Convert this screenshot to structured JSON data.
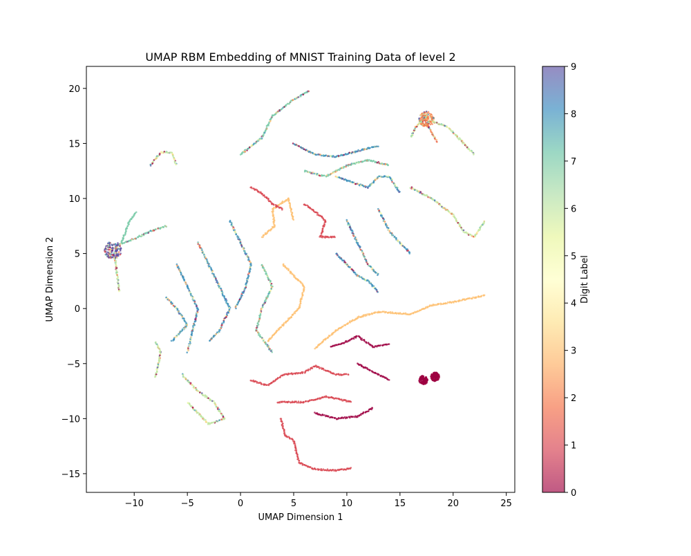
{
  "chart_data": {
    "type": "scatter",
    "title": "UMAP RBM Embedding of MNIST Training Data of level 2",
    "xlabel": "UMAP Dimension 1",
    "ylabel": "UMAP Dimension 2",
    "xlim": [
      -14.5,
      25.8
    ],
    "ylim": [
      -16.7,
      22.0
    ],
    "x_ticks": [
      -10,
      -5,
      0,
      5,
      10,
      15,
      20,
      25
    ],
    "y_ticks": [
      -15,
      -10,
      -5,
      0,
      5,
      10,
      15,
      20
    ],
    "x_tick_labels": [
      "−10",
      "−5",
      "0",
      "5",
      "10",
      "15",
      "20",
      "25"
    ],
    "y_tick_labels": [
      "−15",
      "−10",
      "−5",
      "0",
      "5",
      "10",
      "15",
      "20"
    ],
    "grid": false,
    "colormap": "Spectral",
    "colorbar": {
      "label": "Digit Label",
      "range": [
        0,
        9
      ],
      "ticks": [
        "0",
        "1",
        "2",
        "3",
        "4",
        "5",
        "6",
        "7",
        "8",
        "9"
      ],
      "colors": [
        "#9e0142",
        "#d53e4f",
        "#f46d43",
        "#fdae61",
        "#fee08b",
        "#ffffbf",
        "#e6f598",
        "#abdda4",
        "#66c2a5",
        "#3288bd",
        "#5e4fa2"
      ]
    },
    "clusters": [
      {
        "label": 9,
        "mix": true,
        "points": [
          [
            -12,
            5.3
          ]
        ],
        "blob": 0.8,
        "note": "dense knot"
      },
      {
        "label": 2,
        "mix": true,
        "points": [
          [
            17.5,
            17.2
          ]
        ],
        "blob": 0.7
      },
      {
        "label": 0,
        "points": [
          [
            18.3,
            -6.2
          ],
          [
            17.2,
            -6.5
          ]
        ],
        "blob": 0.4
      },
      {
        "label": 1,
        "points": [
          [
            3.8,
            -10
          ],
          [
            4.2,
            -11.5
          ],
          [
            5,
            -12
          ],
          [
            5.5,
            -14
          ],
          [
            7,
            -14.6
          ],
          [
            9,
            -14.7
          ],
          [
            10.5,
            -14.5
          ]
        ]
      },
      {
        "label": 1,
        "points": [
          [
            1,
            -6.5
          ],
          [
            2.5,
            -7
          ],
          [
            4,
            -6
          ],
          [
            6,
            -5.8
          ],
          [
            7,
            -5.2
          ],
          [
            8,
            -5.6
          ],
          [
            9,
            -6
          ],
          [
            10.2,
            -6
          ]
        ]
      },
      {
        "label": 1,
        "points": [
          [
            3.5,
            -8.5
          ],
          [
            6,
            -8.5
          ],
          [
            8,
            -8
          ],
          [
            10.5,
            -8.5
          ]
        ]
      },
      {
        "label": 0,
        "points": [
          [
            7,
            -9.5
          ],
          [
            9,
            -10
          ],
          [
            11,
            -9.8
          ],
          [
            12.5,
            -9
          ]
        ]
      },
      {
        "label": 0,
        "points": [
          [
            8.5,
            -3.5
          ],
          [
            10,
            -3
          ],
          [
            11,
            -2.5
          ],
          [
            12.5,
            -3.5
          ],
          [
            14,
            -3.2
          ]
        ]
      },
      {
        "label": 0,
        "points": [
          [
            11,
            -5
          ],
          [
            12,
            -5.5
          ],
          [
            13,
            -6
          ],
          [
            14,
            -6.5
          ]
        ]
      },
      {
        "label": 3,
        "points": [
          [
            7,
            -3.6
          ],
          [
            9,
            -2
          ],
          [
            11,
            -0.8
          ],
          [
            13,
            -0.3
          ],
          [
            16,
            -0.5
          ],
          [
            18,
            0.3
          ],
          [
            20,
            0.6
          ],
          [
            23,
            1.2
          ]
        ]
      },
      {
        "label": 3,
        "points": [
          [
            4,
            4
          ],
          [
            5,
            3
          ],
          [
            6,
            2
          ],
          [
            5.5,
            0
          ],
          [
            4.5,
            -1
          ],
          [
            3.5,
            -2
          ],
          [
            2.5,
            -3
          ]
        ]
      },
      {
        "label": 3,
        "points": [
          [
            2,
            6.5
          ],
          [
            3.2,
            7.5
          ],
          [
            3,
            9
          ],
          [
            4.5,
            10
          ],
          [
            5,
            8
          ]
        ]
      },
      {
        "label": 1,
        "points": [
          [
            1,
            11
          ],
          [
            2,
            10.5
          ],
          [
            3,
            9.5
          ],
          [
            4,
            9
          ]
        ]
      },
      {
        "label": 1,
        "points": [
          [
            6,
            9.5
          ],
          [
            7,
            8.8
          ],
          [
            8,
            8
          ],
          [
            7.5,
            6.5
          ],
          [
            9,
            6.5
          ]
        ]
      },
      {
        "label": 7,
        "mix": true,
        "points": [
          [
            -7,
            7.5
          ],
          [
            -8.5,
            7
          ],
          [
            -10.3,
            6.2
          ],
          [
            -11.5,
            5.8
          ]
        ]
      },
      {
        "label": 7,
        "points": [
          [
            -11.2,
            6
          ],
          [
            -10.5,
            7.8
          ],
          [
            -9.8,
            8.8
          ]
        ]
      },
      {
        "label": 6,
        "mix": true,
        "points": [
          [
            -11.8,
            4.5
          ],
          [
            -11.6,
            3
          ],
          [
            -11.4,
            1.5
          ]
        ]
      },
      {
        "label": 6,
        "mix": true,
        "points": [
          [
            -8.5,
            13
          ],
          [
            -7.5,
            14.2
          ],
          [
            -6.5,
            14.2
          ],
          [
            -6,
            13
          ]
        ]
      },
      {
        "label": 6,
        "mix": true,
        "points": [
          [
            17.5,
            17.5
          ],
          [
            16.5,
            16.5
          ],
          [
            16,
            15.5
          ]
        ]
      },
      {
        "label": 6,
        "mix": true,
        "points": [
          [
            18,
            17
          ],
          [
            19.5,
            16.5
          ],
          [
            21,
            15
          ],
          [
            22,
            14
          ]
        ]
      },
      {
        "label": 2,
        "mix": true,
        "points": [
          [
            17.5,
            16.8
          ],
          [
            18,
            16
          ],
          [
            18.5,
            15.1
          ]
        ]
      },
      {
        "label": 6,
        "mix": true,
        "points": [
          [
            16,
            11
          ],
          [
            18,
            10
          ],
          [
            20,
            8.5
          ],
          [
            21,
            7
          ],
          [
            22,
            6.5
          ],
          [
            23,
            8
          ]
        ]
      },
      {
        "label": 6,
        "mix": true,
        "points": [
          [
            -8,
            -6.2
          ],
          [
            -7.5,
            -4
          ],
          [
            -8,
            -3
          ]
        ]
      },
      {
        "label": 6,
        "mix": true,
        "points": [
          [
            -5.5,
            -6
          ],
          [
            -4,
            -7.5
          ],
          [
            -2.5,
            -8.5
          ],
          [
            -1.5,
            -10
          ],
          [
            -3,
            -10.5
          ],
          [
            -5,
            -8.5
          ]
        ]
      },
      {
        "label": 7,
        "mix": true,
        "points": [
          [
            0,
            14
          ],
          [
            2,
            15.5
          ],
          [
            3,
            17.5
          ],
          [
            5,
            19
          ],
          [
            6.5,
            19.8
          ]
        ]
      },
      {
        "label": 8,
        "mix": true,
        "points": [
          [
            5,
            15
          ],
          [
            7,
            14
          ],
          [
            9,
            13.8
          ],
          [
            11,
            14.3
          ],
          [
            13,
            14.8
          ]
        ]
      },
      {
        "label": 8,
        "mix": true,
        "points": [
          [
            9,
            12
          ],
          [
            11,
            11.3
          ],
          [
            12,
            11
          ],
          [
            13,
            12
          ],
          [
            14,
            12
          ],
          [
            15,
            10.5
          ]
        ]
      },
      {
        "label": 8,
        "mix": true,
        "points": [
          [
            -4,
            6
          ],
          [
            -3,
            4
          ],
          [
            -2,
            2
          ],
          [
            -1,
            0
          ],
          [
            -2,
            -2
          ],
          [
            -3,
            -3
          ]
        ]
      },
      {
        "label": 8,
        "mix": true,
        "points": [
          [
            -6,
            4
          ],
          [
            -5,
            2
          ],
          [
            -4,
            0
          ],
          [
            -4.5,
            -2
          ],
          [
            -5,
            -4
          ]
        ]
      },
      {
        "label": 8,
        "mix": true,
        "points": [
          [
            -1,
            8
          ],
          [
            0,
            6
          ],
          [
            1,
            4
          ],
          [
            0.5,
            2
          ],
          [
            -0.5,
            0
          ]
        ]
      },
      {
        "label": 8,
        "mix": true,
        "points": [
          [
            9,
            5
          ],
          [
            10,
            4
          ],
          [
            11,
            3
          ],
          [
            12,
            2.5
          ],
          [
            13,
            1.5
          ]
        ]
      },
      {
        "label": 8,
        "mix": true,
        "points": [
          [
            10,
            8
          ],
          [
            11,
            6
          ],
          [
            12,
            4
          ],
          [
            13,
            3
          ]
        ]
      },
      {
        "label": 8,
        "mix": true,
        "points": [
          [
            13,
            9
          ],
          [
            14,
            7
          ],
          [
            15,
            6
          ],
          [
            16,
            5
          ]
        ]
      },
      {
        "label": 8,
        "mix": true,
        "points": [
          [
            -7,
            1
          ],
          [
            -6,
            0
          ],
          [
            -5,
            -1.5
          ],
          [
            -6.5,
            -3
          ]
        ]
      },
      {
        "label": 7,
        "mix": true,
        "points": [
          [
            2,
            4
          ],
          [
            3,
            2
          ],
          [
            2,
            0
          ],
          [
            1.5,
            -2
          ],
          [
            3,
            -4
          ]
        ]
      },
      {
        "label": 7,
        "mix": true,
        "points": [
          [
            6,
            12.5
          ],
          [
            8,
            12
          ],
          [
            10,
            13
          ],
          [
            12,
            13.5
          ],
          [
            14,
            13
          ]
        ]
      }
    ]
  }
}
